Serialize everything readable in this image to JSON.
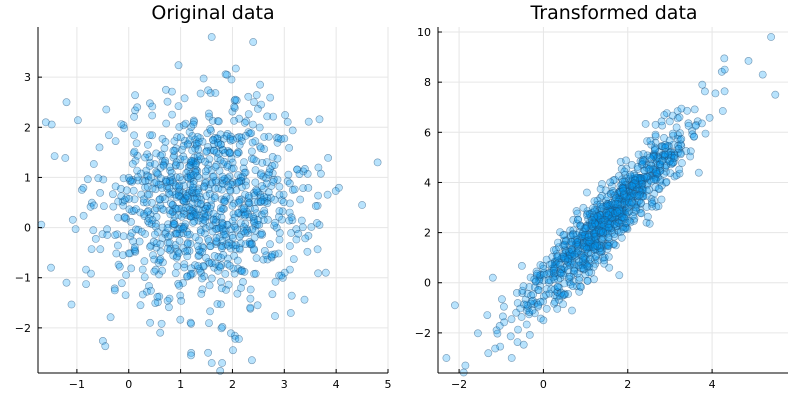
{
  "colors": {
    "marker_fill": "#009af9",
    "marker_stroke": "#1f4e79",
    "grid": "#e6e6e6",
    "axis": "#000000"
  },
  "chart_data": [
    {
      "type": "scatter",
      "title": "Original data",
      "xlabel": "",
      "ylabel": "",
      "xlim": [
        -1.75,
        5.0
      ],
      "ylim": [
        -2.9,
        4.0
      ],
      "xticks": [
        -1,
        0,
        1,
        2,
        3,
        4,
        5
      ],
      "yticks": [
        -2,
        -1,
        0,
        1,
        2,
        3
      ],
      "xtick_labels": [
        "−1",
        "0",
        "1",
        "2",
        "3",
        "4",
        "5"
      ],
      "ytick_labels": [
        "−2",
        "−1",
        "0",
        "1",
        "2",
        "3"
      ],
      "grid": true,
      "legend": "none",
      "distribution": {
        "points": 1000,
        "mean": [
          1.5,
          0.5
        ],
        "std": [
          1.0,
          1.0
        ],
        "correlation": 0.0
      },
      "labeled_outliers": [
        [
          -1.6,
          2.1
        ],
        [
          -1.2,
          2.5
        ],
        [
          1.6,
          3.8
        ],
        [
          2.4,
          3.7
        ],
        [
          4.8,
          1.3
        ],
        [
          4.5,
          0.45
        ],
        [
          1.8,
          -2.7
        ],
        [
          1.6,
          -2.7
        ],
        [
          1.2,
          -2.55
        ],
        [
          -1.5,
          -0.8
        ],
        [
          -1.2,
          -1.1
        ],
        [
          3.8,
          -0.9
        ]
      ]
    },
    {
      "type": "scatter",
      "title": "Transformed data",
      "xlabel": "",
      "ylabel": "",
      "xlim": [
        -2.5,
        5.8
      ],
      "ylim": [
        -3.6,
        10.2
      ],
      "xticks": [
        -2,
        0,
        2,
        4
      ],
      "yticks": [
        -2,
        0,
        2,
        4,
        6,
        8,
        10
      ],
      "xtick_labels": [
        "−2",
        "0",
        "2",
        "4"
      ],
      "ytick_labels": [
        "−2",
        "0",
        "2",
        "4",
        "6",
        "8",
        "10"
      ],
      "grid": true,
      "legend": "none",
      "distribution": {
        "points": 1000,
        "mean": [
          1.5,
          2.5
        ],
        "std": [
          1.0,
          1.9
        ],
        "correlation": 0.93
      },
      "labeled_outliers": [
        [
          5.4,
          9.8
        ],
        [
          5.5,
          7.5
        ],
        [
          5.2,
          8.3
        ],
        [
          4.3,
          8.5
        ],
        [
          -2.3,
          -3.0
        ],
        [
          -1.85,
          -3.3
        ],
        [
          -2.1,
          -0.9
        ],
        [
          -1.2,
          0.2
        ],
        [
          1.8,
          0.3
        ],
        [
          0.0,
          -1.5
        ]
      ]
    }
  ]
}
